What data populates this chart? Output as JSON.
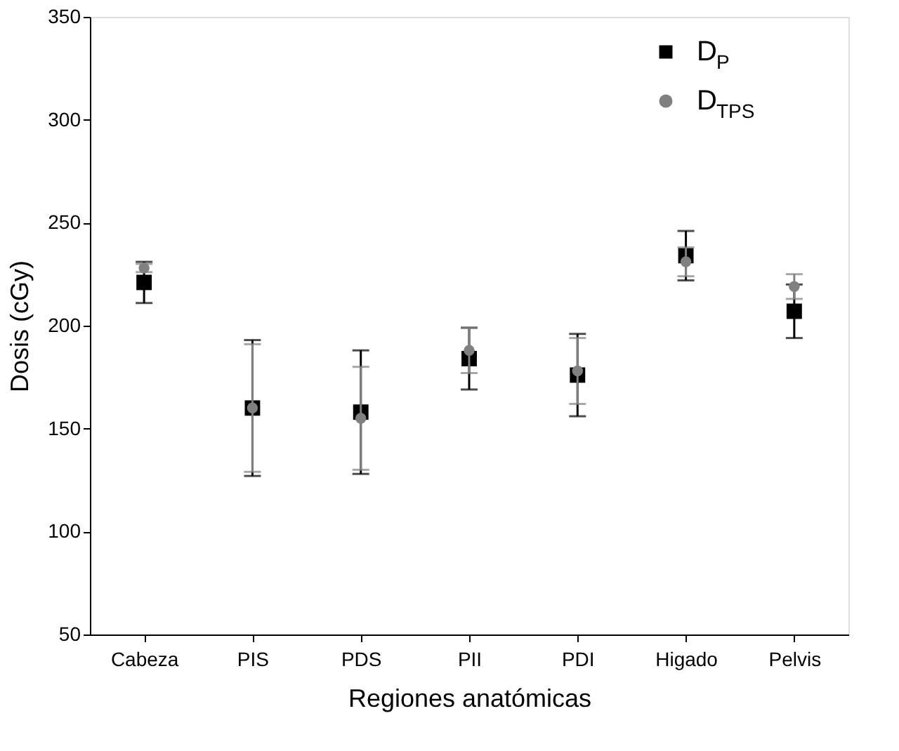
{
  "chart_data": {
    "type": "scatter",
    "xlabel": "Regiones anatómicas",
    "ylabel": "Dosis (cGy)",
    "categories": [
      "Cabeza",
      "PIS",
      "PDS",
      "PII",
      "PDI",
      "Higado",
      "Pelvis"
    ],
    "series": [
      {
        "name": "D$_{P}$",
        "color": "#000000",
        "marker": "square",
        "values": [
          221,
          160,
          158,
          184,
          176,
          234,
          207
        ],
        "errors": [
          10,
          33,
          30,
          15,
          20,
          12,
          13
        ]
      },
      {
        "name": "D$_{TPS}$",
        "color": "#808080",
        "marker": "circle",
        "values": [
          228,
          160,
          155,
          188,
          178,
          231,
          219
        ],
        "errors": [
          2,
          31,
          25,
          11,
          16,
          7,
          6
        ]
      }
    ],
    "ylim": [
      50,
      350
    ],
    "yticks": [
      50,
      100,
      150,
      200,
      250,
      300,
      350
    ],
    "grid": false,
    "legend": "top right"
  }
}
